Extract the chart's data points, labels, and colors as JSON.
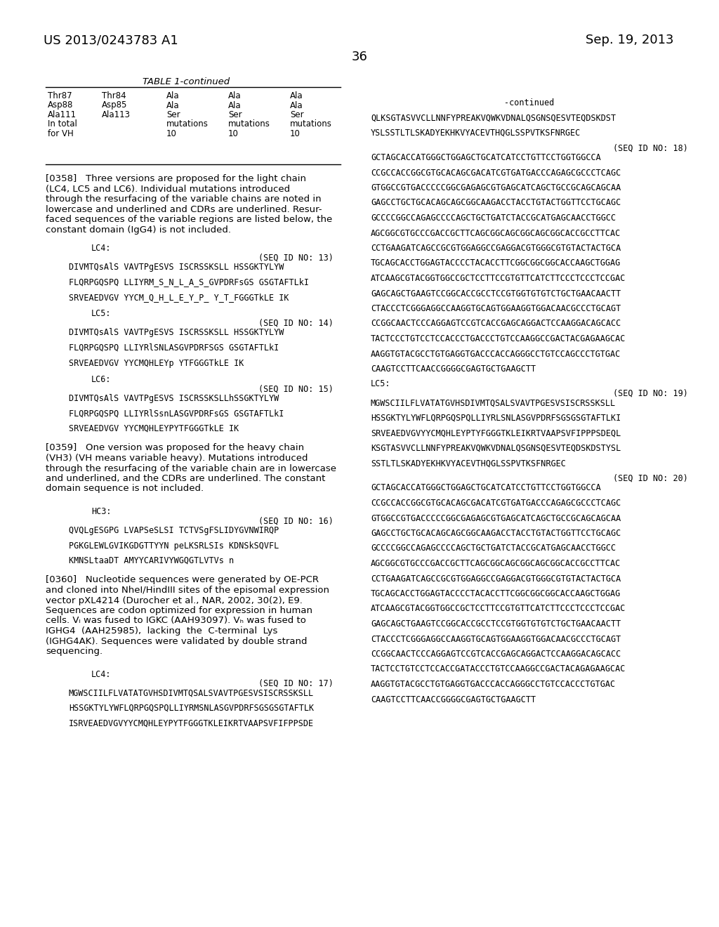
{
  "page_number": "36",
  "header_left": "US 2013/0243783 A1",
  "header_right": "Sep. 19, 2013",
  "bg_color": "#ffffff",
  "table_title": "TABLE 1-continued",
  "table_rows": [
    [
      "Thr87",
      "Thr84",
      "Ala",
      "Ala",
      "Ala"
    ],
    [
      "Asp88",
      "Asp85",
      "Ala",
      "Ala",
      "Ala"
    ],
    [
      "Ala111",
      "Ala113",
      "Ser",
      "Ser",
      "Ser"
    ],
    [
      "In total",
      "",
      "mutations",
      "mutations",
      "mutations"
    ],
    [
      "for VH",
      "",
      "10",
      "10",
      "10"
    ]
  ],
  "left_col": {
    "para_0358_lines": [
      "[0358]   Three versions are proposed for the light chain",
      "(LC4, LC5 and LC6). Individual mutations introduced",
      "through the resurfacing of the variable chains are noted in",
      "lowercase and underlined and CDRs are underlined. Resur-",
      "faced sequences of the variable regions are listed below, the",
      "constant domain (IgG4) is not included."
    ],
    "lc4_lines": [
      "LC4:",
      "(SEQ ID NO: 13)",
      "DIVMTQsAlS VAVTPgESVS ISCRSSKSLL HSSGKTYLYW",
      "FLQRPGQSPQ LLIYRM̲S̲N̲L̲A̲S̲GVPDRFsGS GSGTAFTLkI",
      "SRVEAEDVGV YYCM̲Q̲H̲L̲E̲Y̲P̲ Y̲T̲FGGGTkLE IK"
    ],
    "lc5_lines": [
      "LC5:",
      "(SEQ ID NO: 14)",
      "DIVMTQsAlS VAVTPgESVS ISCRSSKSLL HSSGKTYLYW",
      "FLQRPGQSPQ LLIYRlSNLASGVPDRFSGS GSGTAFTLkI",
      "SRVEAEDVGV YYCMQHLEYp YTFGGGTkLE IK"
    ],
    "lc6_lines": [
      "LC6:",
      "(SEQ ID NO: 15)",
      "DIVMTQsAlS VAVTPgESVS ISCRSSKSLLhSSGKTYLYW",
      "FLQRPGQSPQ LLIYRlSsnLASGVPDRFsGS GSGTAFTLkI",
      "SRVEAEDVGV YYCMQHLEYPYTFGGGTkLE IK"
    ],
    "para_0359_lines": [
      "[0359]   One version was proposed for the heavy chain",
      "(VH3) (VH means variable heavy). Mutations introduced",
      "through the resurfacing of the variable chain are in lowercase",
      "and underlined, and the CDRs are underlined. The constant",
      "domain sequence is not included."
    ],
    "hc3_lines": [
      "HC3:",
      "(SEQ ID NO: 16)",
      "QVQLgESGPG LVAPSeSLSI TCTVSgFSLIDYGVNWIRQP",
      "PGKGLEWLGVIKGDGTTYYN peLKSRLSIs KDNSkSQVFL",
      "KMNSLtaaDT AMYYCARIVYWGQGTLVTVs n"
    ],
    "para_0360_lines": [
      "[0360]   Nucleotide sequences were generated by OE-PCR",
      "and cloned into NheI/HindIII sites of the episomal expression",
      "vector pXL4214 (Durocher et al., NAR, 2002, 30(2), E9.",
      "Sequences are codon optimized for expression in human",
      "cells. Vₗ was fused to IGKC (AAH93097). Vₕ was fused to",
      "IGHG4  (AAH25985),  lacking  the  C-terminal  Lys",
      "(IGHG4AK). Sequences were validated by double strand",
      "sequencing."
    ],
    "lc4_nt_lines": [
      "LC4:",
      "(SEQ ID NO: 17)",
      "MGWSCIILFLVATATGVHSDIVMTQSALSVAVTPGESVSISCRSSKSLL",
      "HSSGKTYLYWFLQRPGQSPQLLIYRMSNLASGVPDRFSGSGSGTAFTLK",
      "ISRVEAEDVGVYYCMQHLEYPYTFGGGTKLEIKRTVAAPSVFIFPPSDE"
    ]
  },
  "right_col": {
    "continued": "-continued",
    "sections": [
      {
        "type": "seq",
        "text": "QLKSGTASVVCLLNNFYPREAKVQWKVDNALQSGNSQESVTEQDSKDST"
      },
      {
        "type": "blank"
      },
      {
        "type": "seq",
        "text": "YSLSSTLTLSKADYEKHKVYACEVTHQGLSSPVTKSFNRGEC"
      },
      {
        "type": "blank"
      },
      {
        "type": "seqid",
        "text": "(SEQ ID NO: 18)"
      },
      {
        "type": "seq",
        "text": "GCTAGCACCATGGGCTGGAGCTGCATCATCCTGTTCCTGGTGGCCA"
      },
      {
        "type": "blank"
      },
      {
        "type": "seq",
        "text": "CCGCCACCGGCGTGCACAGCGACATCGTGATGACCCAGAGCGCCCTCAGC"
      },
      {
        "type": "blank"
      },
      {
        "type": "seq",
        "text": "GTGGCCGTGACCCCCGGCGAGAGCGTGAGCATCAGCTGCCGCAGCAGCAA"
      },
      {
        "type": "blank"
      },
      {
        "type": "seq",
        "text": "GAGCCTGCTGCACAGCAGCGGCAAGACCTACCTGTACTGGTTCCTGCAGC"
      },
      {
        "type": "blank"
      },
      {
        "type": "seq",
        "text": "GCCCCGGCCAGAGCCCCAGCTGCTGATCTACCGCATGAGCAACCTGGCC"
      },
      {
        "type": "blank"
      },
      {
        "type": "seq",
        "text": "AGCGGCGTGCCCGACCGCTTCAGCGGCAGCGGCAGCGGCACCGCCTTCAC"
      },
      {
        "type": "blank"
      },
      {
        "type": "seq",
        "text": "CCTGAAGATCAGCCGCGTGGAGGCCGAGGACGTGGGCGTGTACTACTGCA"
      },
      {
        "type": "blank"
      },
      {
        "type": "seq",
        "text": "TGCAGCACCTGGAGTACCCCTACACCTTCGGCGGCGGCACCAAGCTGGAG"
      },
      {
        "type": "blank"
      },
      {
        "type": "seq",
        "text": "ATCAAGCGTACGGTGGCCGCTCCTTCCGTGTTCATCTTCCCTCCCTCCGAC"
      },
      {
        "type": "blank"
      },
      {
        "type": "seq",
        "text": "GAGCAGCTGAAGTCCGGCACCGCCTCCGTGGTGTGTCTGCTGAACAACTT"
      },
      {
        "type": "blank"
      },
      {
        "type": "seq",
        "text": "CTACCCTCGGGAGGCCAAGGTGCAGTGGAAGGTGGACAACGCCCTGCAGT"
      },
      {
        "type": "blank"
      },
      {
        "type": "seq",
        "text": "CCGGCAACTCCCAGGAGTCCGTCACCGAGCAGGACTCCAAGGACAGCACC"
      },
      {
        "type": "blank"
      },
      {
        "type": "seq",
        "text": "TACTCCCTGTCCTCCACCCTGACCCTGTCCAAGGCCGACTACGAGAAGCAC"
      },
      {
        "type": "blank"
      },
      {
        "type": "seq",
        "text": "AAGGTGTACGCCTGTGAGGTGACCCACCAGGGCCTGTCCAGCCCTGTGAC"
      },
      {
        "type": "blank"
      },
      {
        "type": "seq",
        "text": "CAAGTCCTTCAACCGGGGCGAGTGCTGAAGCTT"
      },
      {
        "type": "blank"
      },
      {
        "type": "label",
        "text": "LC5:"
      },
      {
        "type": "seqid",
        "text": "(SEQ ID NO: 19)"
      },
      {
        "type": "seq",
        "text": "MGWSCIILFLVATATGVHSDIVMTQSALSVAVTPGESVSISCRSSKSLL"
      },
      {
        "type": "blank"
      },
      {
        "type": "seq",
        "text": "HSSGKTYLYWFLQRPGQSPQLLIYRLSNLASGVPDRFSGSGSGTAFTLKI"
      },
      {
        "type": "blank"
      },
      {
        "type": "seq",
        "text": "SRVEAEDVGVYYCMQHLEYPTYFGGGTKLEIKRTVAAPSVFIPPPSDЕQL"
      },
      {
        "type": "blank"
      },
      {
        "type": "seq",
        "text": "KSGTASVVCLLNNFYPREAKVQWKVDNALQSGNSQESVTEQDSKDSTYSL"
      },
      {
        "type": "blank"
      },
      {
        "type": "seq",
        "text": "SSTLTLSKADYEKHKVYACEVTHQGLSSPVTKSFNRGEC"
      },
      {
        "type": "blank"
      },
      {
        "type": "seqid",
        "text": "(SEQ ID NO: 20)"
      },
      {
        "type": "seq",
        "text": "GCTAGCACCATGGGCTGGAGCTGCATCATCCTGTTCCTGGTGGCCA"
      },
      {
        "type": "blank"
      },
      {
        "type": "seq",
        "text": "CCGCCACCGGCGTGCACAGCGACATCGTGATGACCCAGAGCGCCCTCAGC"
      },
      {
        "type": "blank"
      },
      {
        "type": "seq",
        "text": "GTGGCCGTGACCCCCGGCGAGAGCGTGAGCATCAGCTGCCGCAGCAGCAA"
      },
      {
        "type": "blank"
      },
      {
        "type": "seq",
        "text": "GAGCCTGCTGCACAGCAGCGGCAAGACCTACCTGTACTGGTTCCTGCAGC"
      },
      {
        "type": "blank"
      },
      {
        "type": "seq",
        "text": "GCCCCGGCCAGAGCCCCAGCTGCTGATCTACCGCATGAGCAACCTGGCC"
      },
      {
        "type": "blank"
      },
      {
        "type": "seq",
        "text": "AGCGGCGTGCCCGACCGCTTCAGCGGCAGCGGCAGCGGCACCGCCTTCAC"
      },
      {
        "type": "blank"
      },
      {
        "type": "seq",
        "text": "CCTGAAGATCAGCCGCGTGGAGGCCGAGGACGTGGGCGTGTACTACTGCA"
      },
      {
        "type": "blank"
      },
      {
        "type": "seq",
        "text": "TGCAGCACCTGGAGTACCCCTACACCTTCGGCGGCGGCACCAAGCTGGAG"
      },
      {
        "type": "blank"
      },
      {
        "type": "seq",
        "text": "ATCAAGCGTACGGTGGCCGCTCCTTCCGTGTTCATCTTCCCTCCCTCCGAC"
      },
      {
        "type": "blank"
      },
      {
        "type": "seq",
        "text": "GAGCAGCTGAAGTCCGGCACCGCCTCCGTGGTGTGTCTGCTGAACAACTT"
      },
      {
        "type": "blank"
      },
      {
        "type": "seq",
        "text": "CTACCCTCGGGAGGCCAAGGTGCAGTGGAAGGTGGACAACGCCCTGCAGT"
      },
      {
        "type": "blank"
      },
      {
        "type": "seq",
        "text": "CCGGCAACTCCCAGGAGTCCGTCACCGAGCAGGACTCCAAGGACAGCACC"
      },
      {
        "type": "blank"
      },
      {
        "type": "seq",
        "text": "TACTCCTGTCCTCCACCGATACCCTGTCCAAGGCCGACTACAGAGAAGCAC"
      },
      {
        "type": "blank"
      },
      {
        "type": "seq",
        "text": "AAGGTGTACGCCTGTGAGGTGACCCACCAGGGCCTGTCCACCCTGTGAC"
      },
      {
        "type": "blank"
      },
      {
        "type": "seq",
        "text": "CAAGTCCTTCAACCGGGGCGAGTGCTGAAGCTT"
      }
    ]
  }
}
